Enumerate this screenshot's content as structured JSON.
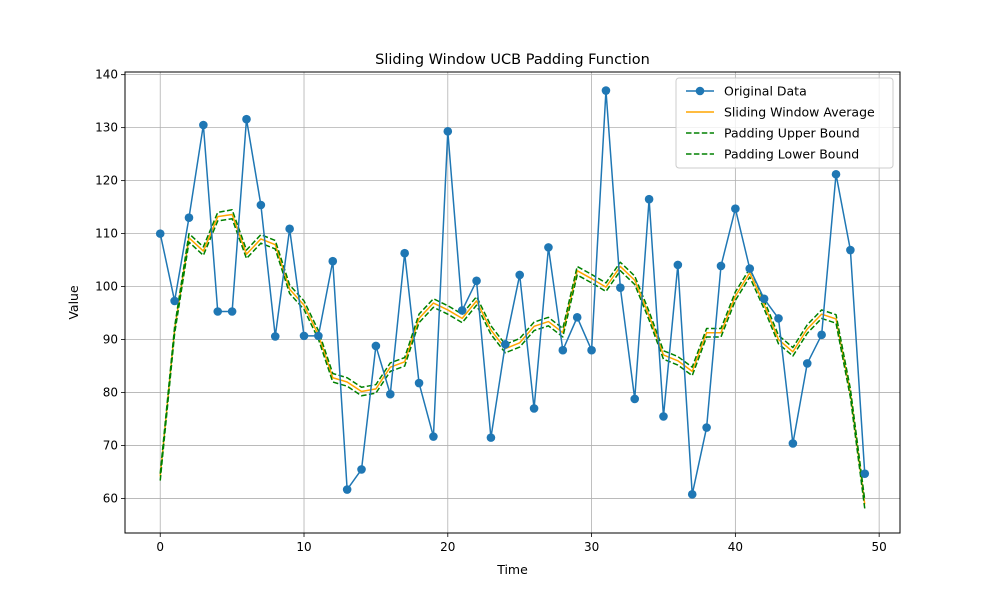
{
  "chart_data": {
    "type": "line",
    "title": "Sliding Window UCB Padding Function",
    "xlabel": "Time",
    "ylabel": "Value",
    "xlim": [
      -2.45,
      51.45
    ],
    "ylim": [
      53.5,
      140.5
    ],
    "xticks": [
      0,
      10,
      20,
      30,
      40,
      50
    ],
    "yticks": [
      60,
      70,
      80,
      90,
      100,
      110,
      120,
      130,
      140
    ],
    "grid": true,
    "legend_position": "top-right",
    "x": [
      0,
      1,
      2,
      3,
      4,
      5,
      6,
      7,
      8,
      9,
      10,
      11,
      12,
      13,
      14,
      15,
      16,
      17,
      18,
      19,
      20,
      21,
      22,
      23,
      24,
      25,
      26,
      27,
      28,
      29,
      30,
      31,
      32,
      33,
      34,
      35,
      36,
      37,
      38,
      39,
      40,
      41,
      42,
      43,
      44,
      45,
      46,
      47,
      48,
      49
    ],
    "series": [
      {
        "name": "Original Data",
        "style": "line-marker",
        "color": "#1f77b4",
        "values": [
          110.0,
          97.3,
          113.0,
          130.5,
          95.3,
          95.3,
          131.6,
          115.4,
          90.6,
          110.9,
          90.7,
          90.7,
          104.8,
          61.7,
          65.5,
          88.8,
          79.7,
          106.3,
          81.8,
          71.7,
          129.3,
          95.5,
          101.1,
          71.5,
          89.1,
          102.2,
          77.0,
          107.4,
          88.0,
          94.2,
          88.0,
          137.0,
          99.8,
          78.8,
          116.5,
          75.5,
          104.1,
          60.8,
          73.4,
          103.9,
          114.7,
          103.4,
          97.7,
          94.0,
          70.4,
          85.5,
          90.9,
          121.2,
          106.9,
          64.7
        ]
      },
      {
        "name": "Sliding Window Average",
        "style": "line",
        "color": "#ffa500",
        "values": [
          64.2,
          91.9,
          109.2,
          106.7,
          113.2,
          113.6,
          106.1,
          109.0,
          107.9,
          99.5,
          96.5,
          90.9,
          82.8,
          82.0,
          80.2,
          80.7,
          84.8,
          85.8,
          94.0,
          96.9,
          95.6,
          94.0,
          97.3,
          91.8,
          88.3,
          89.4,
          92.5,
          93.4,
          91.3,
          103.0,
          101.5,
          99.9,
          103.8,
          101.2,
          94.5,
          87.1,
          86.0,
          84.0,
          91.3,
          91.3,
          98.2,
          102.6,
          96.6,
          90.0,
          87.7,
          92.0,
          94.8,
          93.9,
          79.9,
          58.9
        ]
      },
      {
        "name": "Padding Upper Bound",
        "style": "dashed",
        "color": "#008000",
        "values": [
          64.7,
          92.4,
          110.0,
          107.5,
          114.0,
          114.5,
          106.9,
          109.8,
          108.7,
          100.3,
          97.3,
          91.7,
          83.6,
          82.8,
          81.0,
          81.5,
          85.6,
          86.6,
          94.8,
          97.7,
          96.4,
          94.8,
          98.1,
          92.6,
          89.1,
          90.2,
          93.3,
          94.2,
          92.1,
          103.8,
          102.3,
          100.7,
          104.6,
          102.0,
          95.3,
          87.9,
          86.8,
          84.8,
          92.1,
          92.1,
          99.0,
          103.4,
          97.4,
          90.8,
          88.5,
          92.8,
          95.6,
          94.7,
          80.7,
          59.7
        ]
      },
      {
        "name": "Padding Lower Bound",
        "style": "dashed",
        "color": "#008000",
        "values": [
          63.4,
          91.1,
          108.4,
          105.9,
          112.4,
          112.8,
          105.3,
          108.2,
          107.1,
          98.7,
          95.7,
          90.1,
          82.0,
          81.2,
          79.4,
          79.9,
          84.0,
          85.0,
          93.2,
          96.1,
          94.8,
          93.2,
          96.5,
          91.0,
          87.5,
          88.6,
          91.7,
          92.6,
          90.5,
          102.2,
          100.7,
          99.1,
          103.0,
          100.4,
          93.7,
          86.3,
          85.2,
          83.2,
          90.5,
          90.5,
          97.4,
          101.8,
          95.8,
          89.2,
          86.9,
          91.2,
          94.0,
          93.1,
          79.1,
          58.1
        ]
      }
    ]
  }
}
